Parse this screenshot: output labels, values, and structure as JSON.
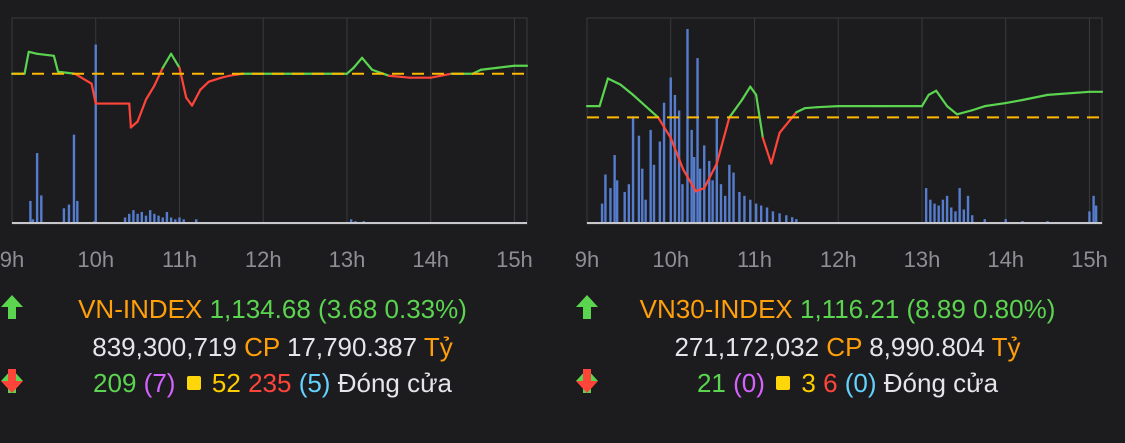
{
  "colors": {
    "up": "#5bd44f",
    "down": "#ff453a",
    "ref": "#ffb800",
    "volume": "#5c87e0",
    "grid": "#3a3a3c",
    "axis": "#8e8e93"
  },
  "chart_data": [
    {
      "type": "line",
      "x_ticks": [
        "9h",
        "10h",
        "11h",
        "12h",
        "13h",
        "14h",
        "15h"
      ],
      "reference": 1131.0,
      "ylim": [
        1123.5,
        1133.8
      ],
      "series": [
        {
          "values": [
            [
              9.0,
              1131.0
            ],
            [
              9.15,
              1131.0
            ],
            [
              9.2,
              1132.1
            ],
            [
              9.3,
              1132.0
            ],
            [
              9.5,
              1131.9
            ],
            [
              9.55,
              1131.1
            ],
            [
              9.75,
              1131.0
            ],
            [
              9.95,
              1130.5
            ],
            [
              10.0,
              1129.5
            ],
            [
              10.4,
              1129.5
            ],
            [
              10.42,
              1128.3
            ],
            [
              10.5,
              1128.6
            ],
            [
              10.6,
              1129.7
            ],
            [
              10.7,
              1130.4
            ],
            [
              10.8,
              1131.3
            ],
            [
              10.9,
              1132.0
            ],
            [
              11.0,
              1131.3
            ],
            [
              11.08,
              1129.8
            ],
            [
              11.15,
              1129.4
            ],
            [
              11.25,
              1130.2
            ],
            [
              11.35,
              1130.6
            ],
            [
              11.5,
              1130.8
            ],
            [
              11.6,
              1130.9
            ],
            [
              11.75,
              1131.0
            ],
            [
              12.0,
              1131.0
            ],
            [
              12.5,
              1131.0
            ],
            [
              13.0,
              1131.0
            ],
            [
              13.08,
              1131.3
            ],
            [
              13.18,
              1131.8
            ],
            [
              13.3,
              1131.2
            ],
            [
              13.5,
              1130.9
            ],
            [
              13.75,
              1130.8
            ],
            [
              14.0,
              1130.8
            ],
            [
              14.25,
              1131.0
            ],
            [
              14.5,
              1131.0
            ],
            [
              14.6,
              1131.2
            ],
            [
              14.8,
              1131.3
            ],
            [
              15.0,
              1131.4
            ],
            [
              15.15,
              1131.4
            ]
          ]
        }
      ],
      "volume": [
        [
          9.22,
          12
        ],
        [
          9.25,
          2
        ],
        [
          9.3,
          38
        ],
        [
          9.35,
          15
        ],
        [
          9.62,
          8
        ],
        [
          9.68,
          10
        ],
        [
          9.74,
          48
        ],
        [
          9.78,
          12
        ],
        [
          9.98,
          0.9
        ],
        [
          10.0,
          97
        ],
        [
          10.35,
          3
        ],
        [
          10.4,
          5
        ],
        [
          10.45,
          7
        ],
        [
          10.5,
          5
        ],
        [
          10.55,
          6
        ],
        [
          10.6,
          4
        ],
        [
          10.65,
          7
        ],
        [
          10.7,
          5
        ],
        [
          10.75,
          4
        ],
        [
          10.8,
          3
        ],
        [
          10.85,
          6
        ],
        [
          10.9,
          3
        ],
        [
          10.95,
          2
        ],
        [
          11.0,
          3
        ],
        [
          11.05,
          2
        ],
        [
          11.2,
          2
        ],
        [
          13.05,
          2
        ],
        [
          13.1,
          1
        ],
        [
          13.2,
          1
        ]
      ]
    },
    {
      "type": "line",
      "x_ticks": [
        "9h",
        "10h",
        "11h",
        "12h",
        "13h",
        "14h",
        "15h"
      ],
      "reference": 1107.3,
      "ylim": [
        1097.0,
        1117.0
      ],
      "series": [
        {
          "values": [
            [
              9.0,
              1108.4
            ],
            [
              9.15,
              1108.4
            ],
            [
              9.25,
              1111.1
            ],
            [
              9.4,
              1110.5
            ],
            [
              9.55,
              1109.5
            ],
            [
              9.7,
              1108.4
            ],
            [
              9.85,
              1107.3
            ],
            [
              10.0,
              1105.3
            ],
            [
              10.15,
              1102.2
            ],
            [
              10.3,
              1100.1
            ],
            [
              10.4,
              1100.4
            ],
            [
              10.55,
              1102.8
            ],
            [
              10.7,
              1107.3
            ],
            [
              10.85,
              1109.0
            ],
            [
              10.95,
              1110.3
            ],
            [
              11.02,
              1109.5
            ],
            [
              11.1,
              1105.3
            ],
            [
              11.2,
              1102.8
            ],
            [
              11.3,
              1105.8
            ],
            [
              11.5,
              1107.8
            ],
            [
              11.6,
              1108.2
            ],
            [
              11.75,
              1108.3
            ],
            [
              12.0,
              1108.4
            ],
            [
              12.5,
              1108.4
            ],
            [
              13.0,
              1108.4
            ],
            [
              13.08,
              1109.5
            ],
            [
              13.17,
              1109.9
            ],
            [
              13.3,
              1108.4
            ],
            [
              13.42,
              1107.6
            ],
            [
              13.6,
              1108.0
            ],
            [
              13.75,
              1108.4
            ],
            [
              14.0,
              1108.7
            ],
            [
              14.2,
              1109.0
            ],
            [
              14.5,
              1109.5
            ],
            [
              15.0,
              1109.8
            ],
            [
              15.15,
              1109.8
            ]
          ]
        }
      ],
      "volume": [
        [
          9.18,
          10
        ],
        [
          9.22,
          25
        ],
        [
          9.28,
          18
        ],
        [
          9.33,
          35
        ],
        [
          9.36,
          22
        ],
        [
          9.45,
          16
        ],
        [
          9.5,
          20
        ],
        [
          9.55,
          55
        ],
        [
          9.62,
          45
        ],
        [
          9.66,
          28
        ],
        [
          9.7,
          12
        ],
        [
          9.76,
          48
        ],
        [
          9.8,
          30
        ],
        [
          9.87,
          42
        ],
        [
          9.92,
          62
        ],
        [
          10.0,
          75
        ],
        [
          10.05,
          66
        ],
        [
          10.1,
          58
        ],
        [
          10.14,
          20
        ],
        [
          10.2,
          100
        ],
        [
          10.25,
          48
        ],
        [
          10.28,
          34
        ],
        [
          10.32,
          85
        ],
        [
          10.35,
          28
        ],
        [
          10.4,
          40
        ],
        [
          10.46,
          32
        ],
        [
          10.5,
          22
        ],
        [
          10.55,
          55
        ],
        [
          10.6,
          20
        ],
        [
          10.65,
          14
        ],
        [
          10.7,
          30
        ],
        [
          10.75,
          26
        ],
        [
          10.82,
          16
        ],
        [
          10.88,
          14
        ],
        [
          10.95,
          12
        ],
        [
          11.02,
          10
        ],
        [
          11.08,
          9
        ],
        [
          11.15,
          8
        ],
        [
          11.22,
          6
        ],
        [
          11.3,
          5
        ],
        [
          11.38,
          4
        ],
        [
          11.45,
          3
        ],
        [
          11.5,
          2
        ],
        [
          13.05,
          18
        ],
        [
          13.1,
          12
        ],
        [
          13.15,
          10
        ],
        [
          13.2,
          9
        ],
        [
          13.25,
          12
        ],
        [
          13.3,
          14
        ],
        [
          13.35,
          8
        ],
        [
          13.4,
          6
        ],
        [
          13.45,
          18
        ],
        [
          13.5,
          7
        ],
        [
          13.55,
          14
        ],
        [
          13.6,
          4
        ],
        [
          13.75,
          2
        ],
        [
          14.0,
          2
        ],
        [
          14.2,
          1
        ],
        [
          14.5,
          1
        ],
        [
          15.0,
          6
        ],
        [
          15.05,
          14
        ],
        [
          15.08,
          9
        ]
      ]
    }
  ],
  "panels": [
    {
      "name": "VN-INDEX",
      "value": "1,134.68",
      "change": "(3.68 0.33%)",
      "volume": "839,300,719",
      "volume_unit": "CP",
      "turnover": "17,790.387",
      "turnover_unit": "Tỷ",
      "advancers": "209",
      "ceiling": "(7)",
      "unchanged": "52",
      "decliners": "235",
      "floor": "(5)",
      "status": "Đóng cửa"
    },
    {
      "name": "VN30-INDEX",
      "value": "1,116.21",
      "change": "(8.89 0.80%)",
      "volume": "271,172,032",
      "volume_unit": "CP",
      "turnover": "8,990.804",
      "turnover_unit": "Tỷ",
      "advancers": "21",
      "ceiling": "(0)",
      "unchanged": "3",
      "decliners": "6",
      "floor": "(0)",
      "status": "Đóng cửa"
    }
  ]
}
